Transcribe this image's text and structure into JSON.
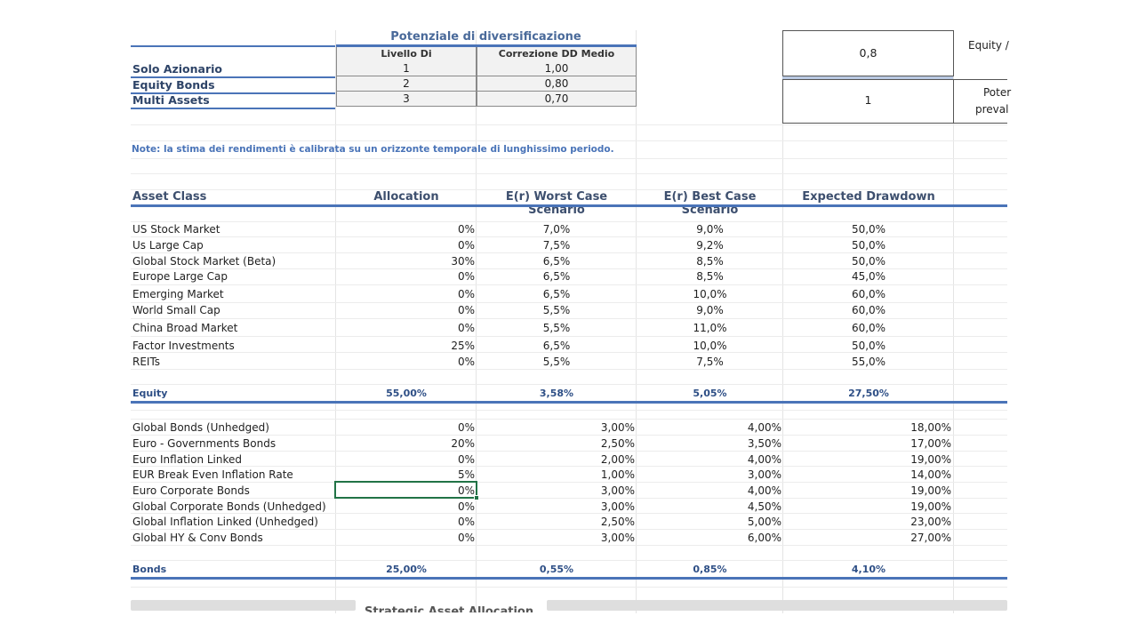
{
  "diversification": {
    "title": "Potenziale di diversificazione",
    "col_level": "Livello Di diversificazione",
    "col_correction": "Correzione DD Medio",
    "rows": [
      {
        "label": "Solo Azionario",
        "level": "1",
        "correction": "1,00"
      },
      {
        "label": "Equity Bonds",
        "level": "2",
        "correction": "0,80"
      },
      {
        "label": "Multi Assets",
        "level": "3",
        "correction": "0,70"
      }
    ]
  },
  "side_boxes": {
    "box1_value": "0,8",
    "box1_label": "Equity /",
    "box2_value": "1",
    "box2_label_line1": "Poter",
    "box2_label_line2": "preval"
  },
  "note": "Note: la stima dei rendimenti è calibrata su un orizzonte temporale di lunghissimo periodo.",
  "headers": {
    "asset_class": "Asset Class",
    "allocation": "Allocation",
    "worst": "E(r) Worst Case Scenario",
    "best": "E(r) Best Case Scenario",
    "drawdown": "Expected Drawdown"
  },
  "equity_rows": [
    {
      "name": "US Stock Market",
      "alloc": "0%",
      "worst": "7,0%",
      "best": "9,0%",
      "dd": "50,0%"
    },
    {
      "name": "Us Large Cap",
      "alloc": "0%",
      "worst": "7,5%",
      "best": "9,2%",
      "dd": "50,0%"
    },
    {
      "name": "Global Stock Market (Beta)",
      "alloc": "30%",
      "worst": "6,5%",
      "best": "8,5%",
      "dd": "50,0%"
    },
    {
      "name": "Europe Large Cap",
      "alloc": "0%",
      "worst": "6,5%",
      "best": "8,5%",
      "dd": "45,0%"
    },
    {
      "name": "Emerging Market",
      "alloc": "0%",
      "worst": "6,5%",
      "best": "10,0%",
      "dd": "60,0%"
    },
    {
      "name": "World Small Cap",
      "alloc": "0%",
      "worst": "5,5%",
      "best": "9,0%",
      "dd": "60,0%"
    },
    {
      "name": "China Broad Market",
      "alloc": "0%",
      "worst": "5,5%",
      "best": "11,0%",
      "dd": "60,0%"
    },
    {
      "name": "Factor Investments",
      "alloc": "25%",
      "worst": "6,5%",
      "best": "10,0%",
      "dd": "50,0%"
    },
    {
      "name": "REITs",
      "alloc": "0%",
      "worst": "5,5%",
      "best": "7,5%",
      "dd": "55,0%"
    }
  ],
  "equity_total": {
    "name": "Equity",
    "alloc": "55,00%",
    "worst": "3,58%",
    "best": "5,05%",
    "dd": "27,50%"
  },
  "bond_rows": [
    {
      "name": "Global Bonds (Unhedged)",
      "alloc": "0%",
      "worst": "3,00%",
      "best": "4,00%",
      "dd": "18,00%"
    },
    {
      "name": "Euro - Governments Bonds",
      "alloc": "20%",
      "worst": "2,50%",
      "best": "3,50%",
      "dd": "17,00%"
    },
    {
      "name": "Euro Inflation Linked",
      "alloc": "0%",
      "worst": "2,00%",
      "best": "4,00%",
      "dd": "19,00%"
    },
    {
      "name": "EUR Break Even Inflation Rate",
      "alloc": "5%",
      "worst": "1,00%",
      "best": "3,00%",
      "dd": "14,00%"
    },
    {
      "name": "Euro Corporate Bonds",
      "alloc": "0%",
      "worst": "3,00%",
      "best": "4,00%",
      "dd": "19,00%"
    },
    {
      "name": "Global Corporate Bonds (Unhedged)",
      "alloc": "0%",
      "worst": "3,00%",
      "best": "4,50%",
      "dd": "19,00%"
    },
    {
      "name": "Global Inflation Linked (Unhedged)",
      "alloc": "0%",
      "worst": "2,50%",
      "best": "5,00%",
      "dd": "23,00%"
    },
    {
      "name": "Global HY & Conv Bonds",
      "alloc": "0%",
      "worst": "3,00%",
      "best": "6,00%",
      "dd": "27,00%"
    }
  ],
  "bond_total": {
    "name": "Bonds",
    "alloc": "25,00%",
    "worst": "0,55%",
    "best": "0,85%",
    "dd": "4,10%"
  },
  "footer_partial": "Strategic Asset Allocation",
  "colors": {
    "accent_blue": "#4a74b8",
    "selection_green": "#217346",
    "note_blue": "#4a74b8"
  }
}
